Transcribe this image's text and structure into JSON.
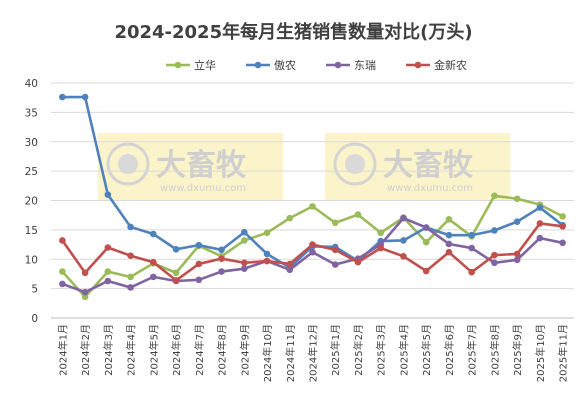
{
  "chart_data": {
    "type": "line",
    "title": "2024-2025年每月生猪销售数量对比(万头)",
    "categories": [
      "2024年1月",
      "2024年2月",
      "2024年3月",
      "2024年4月",
      "2024年5月",
      "2024年6月",
      "2024年7月",
      "2024年8月",
      "2024年9月",
      "2024年10月",
      "2024年11月",
      "2024年12月",
      "2025年1月",
      "2025年2月",
      "2025年3月",
      "2025年4月",
      "2025年5月",
      "2025年6月",
      "2025年7月",
      "2025年8月",
      "2025年9月",
      "2025年10月",
      "2025年11月"
    ],
    "ylim": [
      0,
      40
    ],
    "yticks": [
      0,
      5,
      10,
      15,
      20,
      25,
      30,
      35,
      40
    ],
    "grid": true,
    "legend_position": "top",
    "series": [
      {
        "name": "立华",
        "color": "#9bbb59",
        "values": [
          7.9,
          3.6,
          7.9,
          7.0,
          9.3,
          7.7,
          12.3,
          10.5,
          13.2,
          14.5,
          17.0,
          19.0,
          16.2,
          17.6,
          14.5,
          17.1,
          12.9,
          16.8,
          13.9,
          20.8,
          20.3,
          19.3,
          17.3
        ]
      },
      {
        "name": "傲农",
        "color": "#4f81bd",
        "values": [
          37.6,
          37.6,
          21.0,
          15.5,
          14.3,
          11.7,
          12.4,
          11.6,
          14.6,
          10.9,
          8.6,
          12.2,
          12.1,
          9.7,
          13.1,
          13.2,
          15.4,
          14.1,
          14.1,
          14.9,
          16.4,
          18.8,
          15.8
        ]
      },
      {
        "name": "东瑞",
        "color": "#8064a2",
        "values": [
          5.8,
          4.4,
          6.3,
          5.2,
          7.0,
          6.3,
          6.5,
          7.9,
          8.4,
          9.7,
          8.2,
          11.2,
          9.1,
          10.1,
          12.5,
          17.0,
          15.4,
          12.6,
          11.9,
          9.4,
          9.9,
          13.6,
          12.8
        ]
      },
      {
        "name": "金新农",
        "color": "#c0504d",
        "values": [
          13.2,
          7.7,
          12.0,
          10.6,
          9.5,
          6.4,
          9.2,
          10.1,
          9.4,
          9.7,
          9.2,
          12.5,
          11.6,
          9.5,
          11.9,
          10.5,
          8.0,
          11.2,
          7.8,
          10.7,
          10.9,
          16.1,
          15.6
        ]
      }
    ]
  },
  "watermark": {
    "brand": "大畜牧",
    "site": "www.dxumu.com"
  }
}
